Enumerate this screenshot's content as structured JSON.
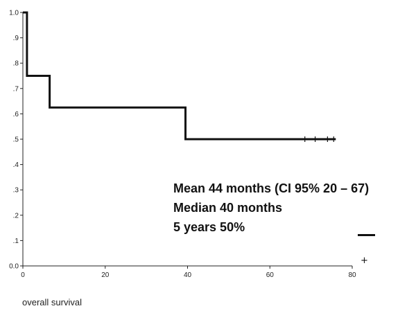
{
  "chart_data": {
    "type": "line",
    "title": "",
    "xlabel": "overall survival",
    "ylabel": "",
    "xlim": [
      0,
      80
    ],
    "ylim": [
      0,
      1.0
    ],
    "x_ticks": [
      "0",
      "20",
      "40",
      "60",
      "80"
    ],
    "x_tick_values": [
      0,
      20,
      40,
      60,
      80
    ],
    "y_ticks": [
      "0.0",
      ".1",
      ".2",
      ".3",
      ".4",
      ".5",
      ".6",
      ".7",
      ".8",
      ".9",
      "1.0"
    ],
    "y_tick_values": [
      0,
      0.1,
      0.2,
      0.3,
      0.4,
      0.5,
      0.6,
      0.7,
      0.8,
      0.9,
      1.0
    ],
    "grid": false,
    "series": [
      {
        "step_points": [
          [
            0,
            1.0
          ],
          [
            1,
            1.0
          ],
          [
            1,
            0.75
          ],
          [
            6.5,
            0.75
          ],
          [
            6.5,
            0.625
          ],
          [
            39.5,
            0.625
          ],
          [
            39.5,
            0.5
          ],
          [
            76,
            0.5
          ]
        ],
        "censored_x": [
          68.5,
          71,
          74,
          75.5
        ]
      }
    ],
    "annotations": [
      "Mean  44 months (CI 95% 20 – 67)",
      "Median 40 months",
      "5 years  50%"
    ],
    "legend": {
      "line_symbol": "—",
      "censor_symbol": "+",
      "placement": "bottom-right"
    }
  }
}
